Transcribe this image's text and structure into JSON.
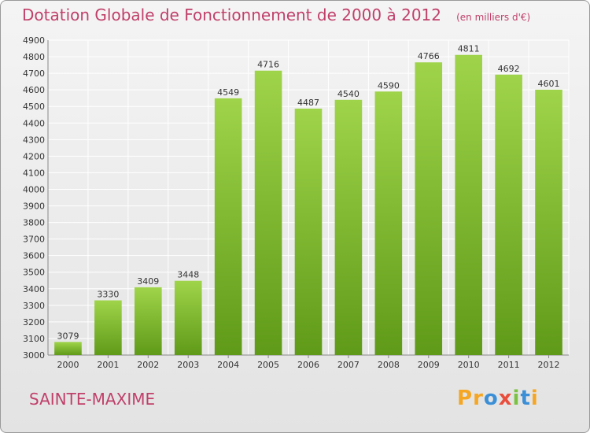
{
  "header": {
    "title": "Dotation Globale de Fonctionnement de 2000 à 2012",
    "unit": "(en milliers d'€)"
  },
  "footer": {
    "commune": "SAINTE-MAXIME",
    "logo_letters": [
      "P",
      "r",
      "o",
      "x",
      "i",
      "t",
      "i"
    ],
    "logo_colors": [
      "#f5a623",
      "#f5a623",
      "#3b8fd6",
      "#e94e3c",
      "#7cc242",
      "#3b8fd6",
      "#f5a623"
    ]
  },
  "colors": {
    "accent": "#c0406a",
    "bar_light": "#9fd44a",
    "bar_dark": "#5f9a18",
    "grid": "#ffffff",
    "axis_text": "#333333"
  },
  "chart_data": {
    "type": "bar",
    "categories": [
      "2000",
      "2001",
      "2002",
      "2003",
      "2004",
      "2005",
      "2006",
      "2007",
      "2008",
      "2009",
      "2010",
      "2011",
      "2012"
    ],
    "values": [
      3079,
      3330,
      3409,
      3448,
      4549,
      4716,
      4487,
      4540,
      4590,
      4766,
      4811,
      4692,
      4601
    ],
    "title": "Dotation Globale de Fonctionnement de 2000 à 2012",
    "ylim": [
      3000,
      4900
    ],
    "yticks": [
      3000,
      3100,
      3200,
      3300,
      3400,
      3500,
      3600,
      3700,
      3800,
      3900,
      4000,
      4100,
      4200,
      4300,
      4400,
      4500,
      4600,
      4700,
      4800,
      4900
    ],
    "grid": true,
    "data_labels": true
  }
}
